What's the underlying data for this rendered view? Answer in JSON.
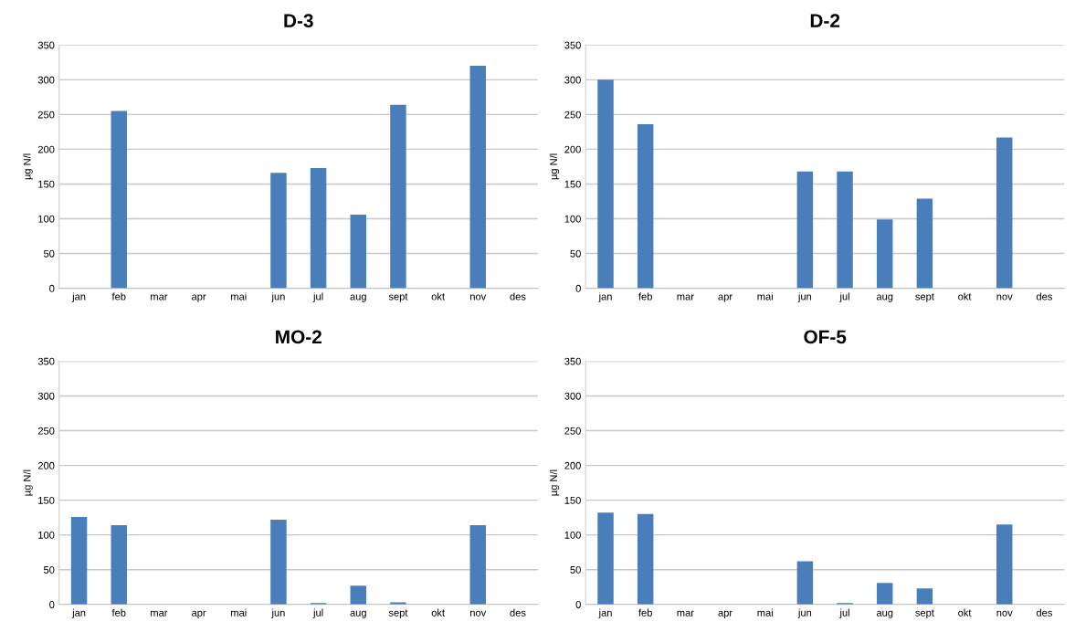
{
  "chart_data": [
    {
      "type": "bar",
      "title": "D-3",
      "ylabel": "µg N/l",
      "categories": [
        "jan",
        "feb",
        "mar",
        "apr",
        "mai",
        "jun",
        "jul",
        "aug",
        "sept",
        "okt",
        "nov",
        "des"
      ],
      "series": [
        {
          "color": "#4a7ebb",
          "values": [
            null,
            255,
            null,
            null,
            null,
            166,
            173,
            106,
            264,
            null,
            320,
            null
          ]
        }
      ],
      "ylim": [
        0,
        350
      ],
      "yticks": [
        0,
        50,
        100,
        150,
        200,
        250,
        300,
        350
      ],
      "grid": "y"
    },
    {
      "type": "bar",
      "title": "D-2",
      "ylabel": "µg N/l",
      "categories": [
        "jan",
        "feb",
        "mar",
        "apr",
        "mai",
        "jun",
        "jul",
        "aug",
        "sept",
        "okt",
        "nov",
        "des"
      ],
      "series": [
        {
          "color": "#4a7ebb",
          "values": [
            300,
            236,
            null,
            null,
            null,
            168,
            168,
            99,
            129,
            null,
            217,
            null
          ]
        }
      ],
      "ylim": [
        0,
        350
      ],
      "yticks": [
        0,
        50,
        100,
        150,
        200,
        250,
        300,
        350
      ],
      "grid": "y"
    },
    {
      "type": "bar",
      "title": "MO-2",
      "ylabel": "µg N/l",
      "categories": [
        "jan",
        "feb",
        "mar",
        "apr",
        "mai",
        "jun",
        "jul",
        "aug",
        "sept",
        "okt",
        "nov",
        "des"
      ],
      "series": [
        {
          "color": "#4a7ebb",
          "values": [
            126,
            114,
            null,
            null,
            null,
            122,
            2,
            27,
            3,
            null,
            114,
            null
          ]
        }
      ],
      "ylim": [
        0,
        350
      ],
      "yticks": [
        0,
        50,
        100,
        150,
        200,
        250,
        300,
        350
      ],
      "grid": "y"
    },
    {
      "type": "bar",
      "title": "OF-5",
      "ylabel": "µg N/l",
      "categories": [
        "jan",
        "feb",
        "mar",
        "apr",
        "mai",
        "jun",
        "jul",
        "aug",
        "sept",
        "okt",
        "nov",
        "des"
      ],
      "series": [
        {
          "color": "#4a7ebb",
          "values": [
            132,
            130,
            null,
            null,
            null,
            62,
            2,
            31,
            23,
            null,
            115,
            null
          ]
        }
      ],
      "ylim": [
        0,
        350
      ],
      "yticks": [
        0,
        50,
        100,
        150,
        200,
        250,
        300,
        350
      ],
      "grid": "y"
    }
  ]
}
